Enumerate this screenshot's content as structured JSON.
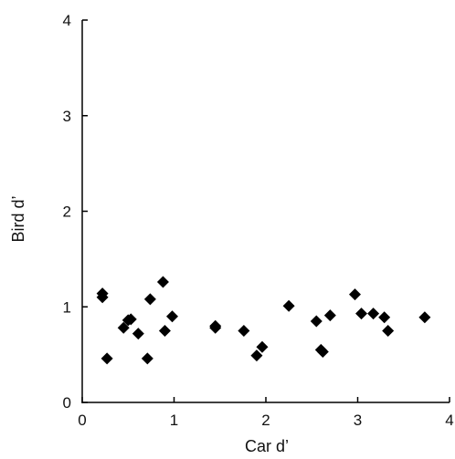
{
  "chart_data": {
    "type": "scatter",
    "title": "",
    "xlabel": "Car d’",
    "ylabel": "Bird d’",
    "xlim": [
      0,
      4
    ],
    "ylim": [
      0,
      4
    ],
    "xticks": [
      "0",
      "1",
      "2",
      "3",
      "4"
    ],
    "yticks": [
      "0",
      "1",
      "2",
      "3",
      "4"
    ],
    "grid": false,
    "marker": "diamond",
    "marker_color": "#000000",
    "points": [
      {
        "x": 0.22,
        "y": 1.14
      },
      {
        "x": 0.22,
        "y": 1.1
      },
      {
        "x": 0.27,
        "y": 0.46
      },
      {
        "x": 0.45,
        "y": 0.78
      },
      {
        "x": 0.5,
        "y": 0.86
      },
      {
        "x": 0.53,
        "y": 0.87
      },
      {
        "x": 0.61,
        "y": 0.72
      },
      {
        "x": 0.71,
        "y": 0.46
      },
      {
        "x": 0.74,
        "y": 1.08
      },
      {
        "x": 0.88,
        "y": 1.26
      },
      {
        "x": 0.9,
        "y": 0.75
      },
      {
        "x": 0.98,
        "y": 0.9
      },
      {
        "x": 1.45,
        "y": 0.8
      },
      {
        "x": 1.45,
        "y": 0.78
      },
      {
        "x": 1.76,
        "y": 0.75
      },
      {
        "x": 1.9,
        "y": 0.49
      },
      {
        "x": 1.96,
        "y": 0.58
      },
      {
        "x": 2.25,
        "y": 1.01
      },
      {
        "x": 2.55,
        "y": 0.85
      },
      {
        "x": 2.6,
        "y": 0.55
      },
      {
        "x": 2.62,
        "y": 0.53
      },
      {
        "x": 2.7,
        "y": 0.91
      },
      {
        "x": 2.97,
        "y": 1.13
      },
      {
        "x": 3.04,
        "y": 0.93
      },
      {
        "x": 3.17,
        "y": 0.93
      },
      {
        "x": 3.29,
        "y": 0.89
      },
      {
        "x": 3.33,
        "y": 0.75
      },
      {
        "x": 3.73,
        "y": 0.89
      }
    ]
  }
}
